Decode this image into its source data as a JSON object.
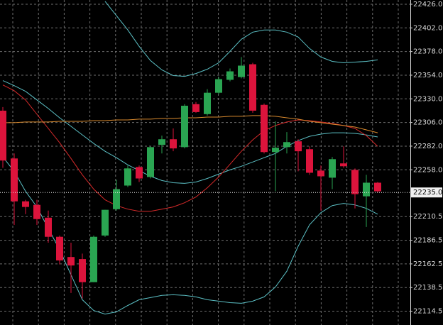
{
  "chart_data": {
    "type": "candlestick",
    "open": [
      22318.0,
      22269.5,
      22226.0,
      22222.4,
      22209.4,
      22190.0,
      22169.5,
      22167.4,
      22144.0,
      22191.3,
      22218.0,
      22242.0,
      22260.8,
      22250.7,
      22283.3,
      22289.0,
      22281.0,
      22324.6,
      22314.5,
      22336.2,
      22349.3,
      22352.1,
      22365.1,
      22323.9,
      22276.0,
      22281.0,
      22286.9,
      22278.9,
      22257.2,
      22250.0,
      22264.5,
      22257.9,
      22231.1,
      22244.9
    ],
    "high": [
      22321.7,
      22274.6,
      22227.5,
      22227.5,
      22216.6,
      22191.3,
      22184.0,
      22173.0,
      22191.3,
      22217.4,
      22247.8,
      22262.3,
      22262.3,
      22281.8,
      22292.7,
      22300.0,
      22324.6,
      22326.8,
      22339.8,
      22352.1,
      22360.8,
      22372.4,
      22366.6,
      22325.3,
      22307.2,
      22296.3,
      22289.0,
      22281.8,
      22262.3,
      22271.0,
      22281.8,
      22259.4,
      22252.9,
      22245.6
    ],
    "low": [
      22260.0,
      22202.0,
      22213.0,
      22202.0,
      22184.0,
      22162.0,
      22133.0,
      22127.5,
      22144.0,
      22190.0,
      22216.6,
      22240.5,
      22245.6,
      22249.2,
      22274.6,
      22276.8,
      22279.7,
      22315.9,
      22313.0,
      22334.7,
      22347.8,
      22350.7,
      22315.9,
      22274.6,
      22236.2,
      22274.6,
      22256.5,
      22252.9,
      22216.6,
      22238.4,
      22260.0,
      22218.8,
      22200.0,
      22234.8
    ],
    "close": [
      22267.4,
      22226.0,
      22220.3,
      22208.0,
      22190.0,
      22166.0,
      22160.9,
      22144.0,
      22190.0,
      22217.4,
      22238.4,
      22259.4,
      22249.2,
      22281.0,
      22289.0,
      22279.7,
      22323.0,
      22316.6,
      22336.2,
      22350.0,
      22357.9,
      22363.7,
      22318.0,
      22276.0,
      22280.4,
      22286.1,
      22276.8,
      22255.0,
      22251.4,
      22268.8,
      22261.6,
      22233.3,
      22244.9,
      22236.2
    ],
    "up_color": "#2aa552",
    "down_color": "#dc143c",
    "lines": [
      {
        "color": "#5bbfc4",
        "values": [
          null,
          null,
          null,
          null,
          null,
          null,
          null,
          null,
          null,
          22428.9,
          22414.4,
          22399.9,
          22383.3,
          22368.8,
          22359.4,
          22353.6,
          22352.8,
          22355.7,
          22360.1,
          22366.6,
          22378.2,
          22390.5,
          22397.7,
          22399.9,
          22399.9,
          22397.7,
          22392.7,
          22381.1,
          22372.4,
          22368.0,
          22366.6,
          22367.3,
          22368.0,
          22369.5
        ]
      },
      {
        "color": "#5bbfc4",
        "values": [
          22348.5,
          22343.4,
          22337.6,
          22328.9,
          22320.2,
          22310.8,
          22302.1,
          22293.4,
          22284.7,
          22276.8,
          22270.3,
          22263.0,
          22257.2,
          22251.4,
          22247.1,
          22244.9,
          22244.2,
          22245.6,
          22249.2,
          22253.6,
          22257.9,
          22261.6,
          22265.9,
          22270.3,
          22274.6,
          22281.8,
          22287.6,
          22292.0,
          22294.2,
          22295.6,
          22295.6,
          22294.9,
          22293.4,
          22291.3
        ]
      },
      {
        "color": "#5bbfc4",
        "values": [
          22271.0,
          22256.5,
          22236.2,
          22220.3,
          22198.5,
          22176.8,
          22151.5,
          22126.1,
          22115.2,
          22111.6,
          22113.8,
          22120.3,
          22126.1,
          22128.3,
          22130.5,
          22131.2,
          22130.5,
          22129.0,
          22126.1,
          22124.7,
          22123.2,
          22122.5,
          22124.7,
          22129.0,
          22139.1,
          22155.1,
          22180.4,
          22202.2,
          22214.5,
          22221.7,
          22223.9,
          22222.4,
          22218.8,
          22213.0
        ]
      },
      {
        "color": "#d62a2a",
        "values": [
          22344.1,
          22338.3,
          22328.9,
          22314.4,
          22300.0,
          22285.5,
          22269.5,
          22252.9,
          22238.4,
          22227.5,
          22221.7,
          22218.1,
          22215.9,
          22215.9,
          22218.1,
          22220.3,
          22224.6,
          22230.4,
          22239.8,
          22250.7,
          22263.7,
          22276.8,
          22288.4,
          22297.8,
          22302.9,
          22306.5,
          22308.6,
          22307.9,
          22306.5,
          22305.0,
          22302.9,
          22300.0,
          22292.7,
          22281.8
        ]
      },
      {
        "color": "#d98a2e",
        "values": [
          22305.8,
          22305.8,
          22306.5,
          22306.5,
          22306.5,
          22307.2,
          22307.2,
          22307.2,
          22307.9,
          22307.9,
          22308.6,
          22308.6,
          22309.4,
          22309.4,
          22310.1,
          22310.1,
          22310.8,
          22310.8,
          22311.5,
          22311.5,
          22312.3,
          22312.3,
          22313.0,
          22313.0,
          22312.3,
          22310.8,
          22309.4,
          22307.2,
          22305.8,
          22304.3,
          22302.9,
          22301.4,
          22298.5,
          22295.6
        ]
      }
    ],
    "ylim": [
      22430.3,
      22100.5
    ],
    "yticks": [
      {
        "value": 22426,
        "label": "22426.0"
      },
      {
        "value": 22402,
        "label": "22402.0"
      },
      {
        "value": 22378,
        "label": "22378.0"
      },
      {
        "value": 22354,
        "label": "22354.0"
      },
      {
        "value": 22330,
        "label": "22330.0"
      },
      {
        "value": 22306,
        "label": "22306.0"
      },
      {
        "value": 22282,
        "label": "22282.0"
      },
      {
        "value": 22258,
        "label": "22258.0"
      },
      {
        "value": 22210.5,
        "label": "22210.5"
      },
      {
        "value": 22186.5,
        "label": "22186.5"
      },
      {
        "value": 22162.5,
        "label": "22162.5"
      },
      {
        "value": 22138.5,
        "label": "22138.5"
      },
      {
        "value": 22114.5,
        "label": "22114.5"
      }
    ],
    "last_price": {
      "value": 22235,
      "label": "22235.0"
    },
    "grid": true
  }
}
